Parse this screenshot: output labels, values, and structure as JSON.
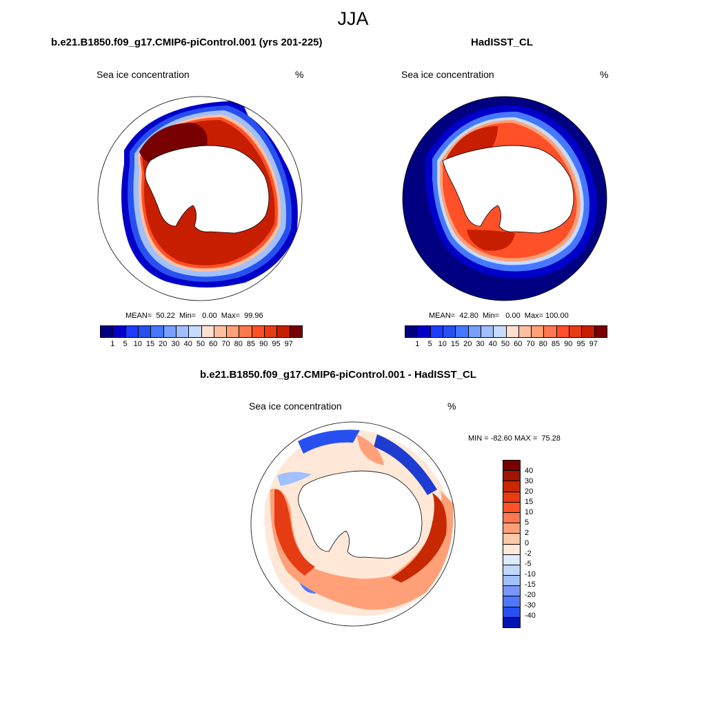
{
  "figure": {
    "title": "JJA"
  },
  "colors": {
    "conc_levels": [
      "#000080",
      "#0000c8",
      "#1e3cff",
      "#2850f0",
      "#4678ff",
      "#78a0ff",
      "#a0c0ff",
      "#c8dcff",
      "#ffe0d0",
      "#ffc0a0",
      "#ffa078",
      "#ff7850",
      "#ff5028",
      "#e63c14",
      "#c81e00",
      "#a01400",
      "#780000"
    ],
    "diff_levels": [
      "#780000",
      "#a01400",
      "#c82800",
      "#e63c14",
      "#ff5028",
      "#ff7850",
      "#ffa078",
      "#ffc8a8",
      "#ffe8d8",
      "#dcebff",
      "#c0d8ff",
      "#a0c0ff",
      "#7896ff",
      "#5078ff",
      "#2850f0",
      "#1e3cd2",
      "#0014b4",
      "#000080"
    ]
  },
  "panels": [
    {
      "title": "b.e21.B1850.f09_g17.CMIP6-piControl.001 (yrs 201-225)",
      "variable": "Sea ice concentration",
      "units": "%",
      "stats": "MEAN=  50.22  Min=   0.00  Max=  99.96",
      "colorbar_labels": [
        "1",
        "5",
        "10",
        "15",
        "20",
        "30",
        "40",
        "50",
        "60",
        "70",
        "80",
        "85",
        "90",
        "95",
        "97"
      ]
    },
    {
      "title": "HadISST_CL",
      "variable": "Sea ice concentration",
      "units": "%",
      "stats": "MEAN=  42.80  Min=   0.00  Max= 100.00",
      "colorbar_labels": [
        "1",
        "5",
        "10",
        "15",
        "20",
        "30",
        "40",
        "50",
        "60",
        "70",
        "80",
        "85",
        "90",
        "95",
        "97"
      ]
    },
    {
      "title": "b.e21.B1850.f09_g17.CMIP6-piControl.001 - HadISST_CL",
      "variable": "Sea ice concentration",
      "units": "%",
      "stats": "MIN = -82.60 MAX =  75.28",
      "colorbar_labels": [
        "40",
        "30",
        "20",
        "15",
        "10",
        "5",
        "2",
        "0",
        "-2",
        "-5",
        "-10",
        "-15",
        "-20",
        "-30",
        "-40"
      ]
    }
  ]
}
